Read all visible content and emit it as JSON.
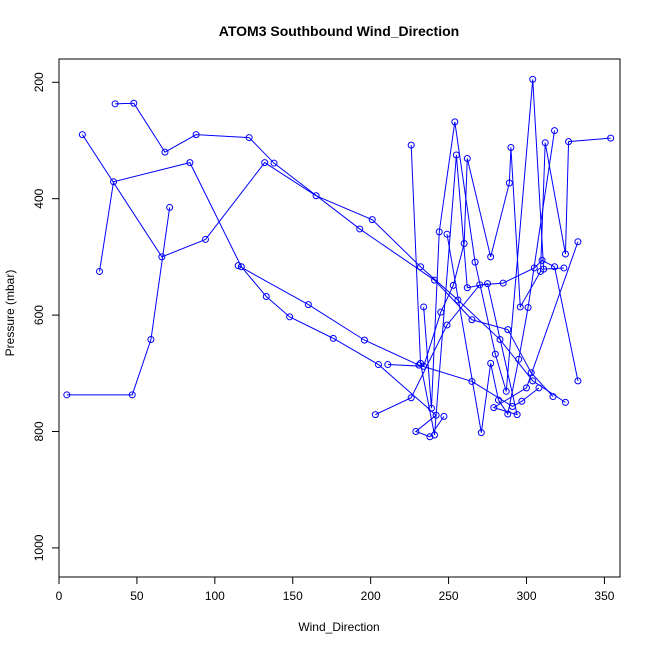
{
  "chart_data": {
    "type": "line",
    "title": "ATOM3 Southbound Wind_Direction",
    "xlabel": "Wind_Direction",
    "ylabel": "Pressure (mbar)",
    "xlim": [
      0,
      360
    ],
    "ylim": [
      1050,
      160
    ],
    "y_reversed": true,
    "x_ticks": [
      "0",
      "50",
      "100",
      "150",
      "200",
      "250",
      "300",
      "350"
    ],
    "y_ticks": [
      "200",
      "400",
      "600",
      "800",
      "1000"
    ],
    "grid": false,
    "legend": "none",
    "series_color": "#0000ff",
    "marker": "open-circle",
    "series": [
      {
        "x": [
          5,
          47,
          59,
          71
        ],
        "y": [
          737,
          737,
          642,
          415
        ]
      },
      {
        "x": [
          26,
          35,
          84,
          117,
          133,
          148,
          176,
          205,
          242,
          229,
          238,
          247
        ],
        "y": [
          525,
          371,
          338,
          517,
          568,
          603,
          640,
          685,
          772,
          800,
          809,
          774
        ]
      },
      {
        "x": [
          36,
          48,
          68,
          88,
          122,
          138,
          193,
          241,
          265,
          288,
          303,
          317
        ],
        "y": [
          237,
          236,
          320,
          290,
          295,
          339,
          452,
          540,
          608,
          625,
          699,
          740
        ]
      },
      {
        "x": [
          15,
          66,
          94,
          132,
          165,
          201,
          232,
          256,
          283,
          304,
          325
        ],
        "y": [
          290,
          500,
          470,
          338,
          395,
          436,
          517,
          574,
          642,
          713,
          750
        ]
      },
      {
        "x": [
          115,
          160,
          196,
          231,
          265,
          291,
          297,
          308
        ],
        "y": [
          515,
          582,
          643,
          686,
          714,
          757,
          748,
          725
        ]
      },
      {
        "x": [
          203,
          226,
          249,
          270,
          285,
          305,
          310,
          318,
          333
        ],
        "y": [
          771,
          742,
          617,
          548,
          545,
          519,
          506,
          517,
          713
        ]
      },
      {
        "x": [
          211,
          234,
          245,
          253,
          260,
          262,
          277,
          289,
          290,
          296,
          309,
          312,
          325,
          327,
          354
        ],
        "y": [
          685,
          688,
          595,
          549,
          477,
          331,
          500,
          373,
          312,
          586,
          525,
          304,
          495,
          302,
          296
        ]
      },
      {
        "x": [
          234,
          239,
          244,
          254,
          267,
          280,
          287,
          304,
          311,
          324
        ],
        "y": [
          586,
          760,
          457,
          268,
          509,
          667,
          731,
          195,
          521,
          519
        ]
      },
      {
        "x": [
          226,
          232,
          241,
          255,
          262,
          275,
          294,
          279,
          300,
          333
        ],
        "y": [
          308,
          683,
          806,
          325,
          553,
          546,
          771,
          759,
          725,
          474
        ]
      },
      {
        "x": [
          249,
          271,
          277,
          282,
          288,
          295,
          301,
          318
        ],
        "y": [
          461,
          802,
          683,
          746,
          770,
          676,
          587,
          283
        ]
      }
    ]
  }
}
